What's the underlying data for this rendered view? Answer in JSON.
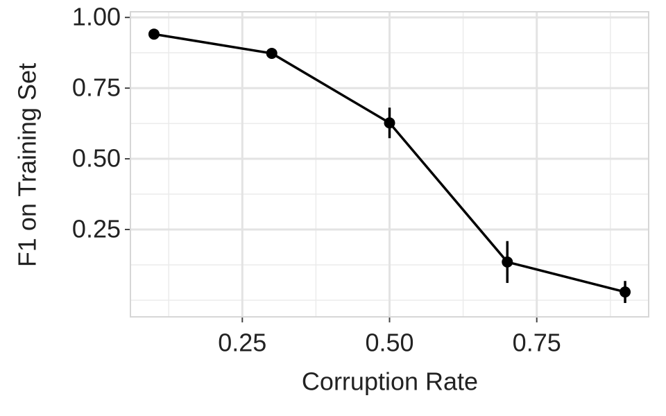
{
  "chart_data": {
    "type": "line",
    "x_label": "Corruption Rate",
    "y_label": "F1 on Training Set",
    "x": [
      0.1,
      0.3,
      0.5,
      0.7,
      0.9
    ],
    "series": [
      {
        "color": "#000000",
        "values": [
          0.941,
          0.873,
          0.627,
          0.135,
          0.029
        ],
        "errors": [
          0.004,
          0.006,
          0.054,
          0.074,
          0.039
        ]
      }
    ],
    "xlim": [
      0.06,
      0.94
    ],
    "ylim": [
      -0.059,
      1.02
    ],
    "xticks": [
      {
        "value": 0.25,
        "label": "0.25"
      },
      {
        "value": 0.5,
        "label": "0.50"
      },
      {
        "value": 0.75,
        "label": "0.75"
      }
    ],
    "yticks": [
      {
        "value": 0.25,
        "label": "0.25"
      },
      {
        "value": 0.5,
        "label": "0.50"
      },
      {
        "value": 0.75,
        "label": "0.75"
      },
      {
        "value": 1,
        "label": "1.00"
      }
    ],
    "x_minor_grid": [
      0.125,
      0.375,
      0.625,
      0.875
    ],
    "y_minor_grid": [
      0,
      0.125,
      0.375,
      0.625,
      0.875
    ],
    "grid": true
  }
}
